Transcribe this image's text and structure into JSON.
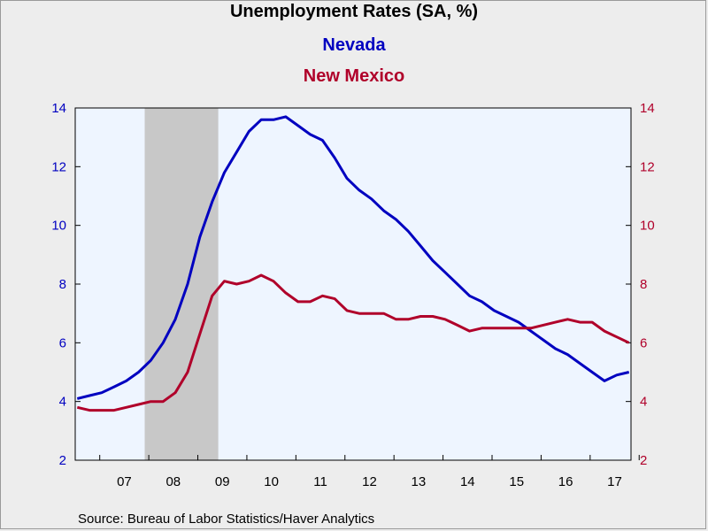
{
  "chart_data": {
    "type": "line",
    "title": "Unemployment Rates (SA, %)",
    "source": "Source:  Bureau of Labor Statistics/Haver Analytics",
    "ylim": [
      2,
      14
    ],
    "yticks": [
      2,
      4,
      6,
      8,
      10,
      12,
      14
    ],
    "xlim": [
      "2006-07",
      "2017-10"
    ],
    "x_tick_labels": [
      "07",
      "08",
      "09",
      "10",
      "11",
      "12",
      "13",
      "14",
      "15",
      "16",
      "17"
    ],
    "recession_shading": [
      "2007-12",
      "2009-06"
    ],
    "grid": false,
    "plot_background": "#eef5ff",
    "recession_color": "#c8c8c8",
    "series": [
      {
        "name": "Nevada",
        "axis": "left",
        "color": "#0000c0",
        "points": [
          [
            "2006-07",
            4.1
          ],
          [
            "2006-10",
            4.2
          ],
          [
            "2007-01",
            4.3
          ],
          [
            "2007-04",
            4.5
          ],
          [
            "2007-07",
            4.7
          ],
          [
            "2007-10",
            5.0
          ],
          [
            "2008-01",
            5.4
          ],
          [
            "2008-04",
            6.0
          ],
          [
            "2008-07",
            6.8
          ],
          [
            "2008-10",
            8.0
          ],
          [
            "2009-01",
            9.6
          ],
          [
            "2009-04",
            10.8
          ],
          [
            "2009-07",
            11.8
          ],
          [
            "2009-10",
            12.5
          ],
          [
            "2010-01",
            13.2
          ],
          [
            "2010-04",
            13.6
          ],
          [
            "2010-07",
            13.6
          ],
          [
            "2010-10",
            13.7
          ],
          [
            "2011-01",
            13.4
          ],
          [
            "2011-04",
            13.1
          ],
          [
            "2011-07",
            12.9
          ],
          [
            "2011-10",
            12.3
          ],
          [
            "2012-01",
            11.6
          ],
          [
            "2012-04",
            11.2
          ],
          [
            "2012-07",
            10.9
          ],
          [
            "2012-10",
            10.5
          ],
          [
            "2013-01",
            10.2
          ],
          [
            "2013-04",
            9.8
          ],
          [
            "2013-07",
            9.3
          ],
          [
            "2013-10",
            8.8
          ],
          [
            "2014-01",
            8.4
          ],
          [
            "2014-04",
            8.0
          ],
          [
            "2014-07",
            7.6
          ],
          [
            "2014-10",
            7.4
          ],
          [
            "2015-01",
            7.1
          ],
          [
            "2015-04",
            6.9
          ],
          [
            "2015-07",
            6.7
          ],
          [
            "2015-10",
            6.4
          ],
          [
            "2016-01",
            6.1
          ],
          [
            "2016-04",
            5.8
          ],
          [
            "2016-07",
            5.6
          ],
          [
            "2016-10",
            5.3
          ],
          [
            "2017-01",
            5.0
          ],
          [
            "2017-04",
            4.7
          ],
          [
            "2017-07",
            4.9
          ],
          [
            "2017-10",
            5.0
          ]
        ]
      },
      {
        "name": "New Mexico",
        "axis": "right",
        "color": "#b0002a",
        "points": [
          [
            "2006-07",
            3.8
          ],
          [
            "2006-10",
            3.7
          ],
          [
            "2007-01",
            3.7
          ],
          [
            "2007-04",
            3.7
          ],
          [
            "2007-07",
            3.8
          ],
          [
            "2007-10",
            3.9
          ],
          [
            "2008-01",
            4.0
          ],
          [
            "2008-04",
            4.0
          ],
          [
            "2008-07",
            4.3
          ],
          [
            "2008-10",
            5.0
          ],
          [
            "2009-01",
            6.3
          ],
          [
            "2009-04",
            7.6
          ],
          [
            "2009-07",
            8.1
          ],
          [
            "2009-10",
            8.0
          ],
          [
            "2010-01",
            8.1
          ],
          [
            "2010-04",
            8.3
          ],
          [
            "2010-07",
            8.1
          ],
          [
            "2010-10",
            7.7
          ],
          [
            "2011-01",
            7.4
          ],
          [
            "2011-04",
            7.4
          ],
          [
            "2011-07",
            7.6
          ],
          [
            "2011-10",
            7.5
          ],
          [
            "2012-01",
            7.1
          ],
          [
            "2012-04",
            7.0
          ],
          [
            "2012-07",
            7.0
          ],
          [
            "2012-10",
            7.0
          ],
          [
            "2013-01",
            6.8
          ],
          [
            "2013-04",
            6.8
          ],
          [
            "2013-07",
            6.9
          ],
          [
            "2013-10",
            6.9
          ],
          [
            "2014-01",
            6.8
          ],
          [
            "2014-04",
            6.6
          ],
          [
            "2014-07",
            6.4
          ],
          [
            "2014-10",
            6.5
          ],
          [
            "2015-01",
            6.5
          ],
          [
            "2015-04",
            6.5
          ],
          [
            "2015-07",
            6.5
          ],
          [
            "2015-10",
            6.5
          ],
          [
            "2016-01",
            6.6
          ],
          [
            "2016-04",
            6.7
          ],
          [
            "2016-07",
            6.8
          ],
          [
            "2016-10",
            6.7
          ],
          [
            "2017-01",
            6.7
          ],
          [
            "2017-04",
            6.4
          ],
          [
            "2017-07",
            6.2
          ],
          [
            "2017-10",
            6.0
          ]
        ]
      }
    ]
  }
}
